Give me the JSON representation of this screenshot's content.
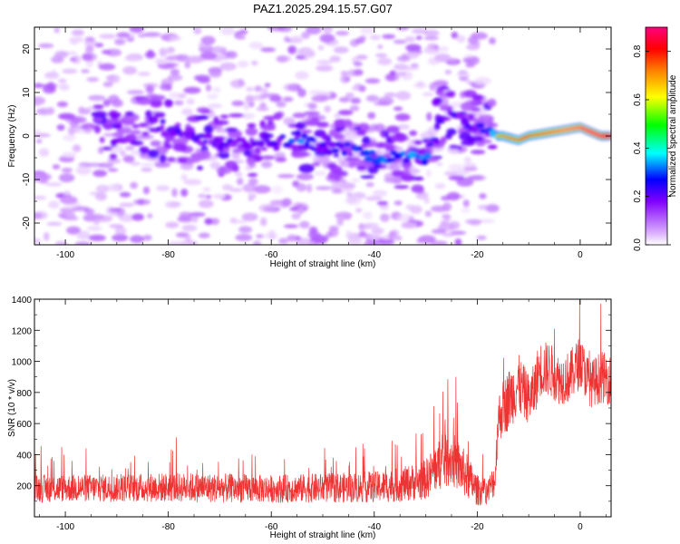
{
  "title": "PAZ1.2025.294.15.57.G07",
  "chart_data": [
    {
      "type": "heatmap",
      "xlabel": "Height of straight line (km)",
      "ylabel": "Frequency (Hz)",
      "xlim": [
        -106,
        6
      ],
      "ylim": [
        -25,
        25
      ],
      "x_ticks": [
        -100,
        -80,
        -60,
        -40,
        -20,
        0
      ],
      "y_ticks": [
        -20,
        -10,
        0,
        10,
        20
      ],
      "colorbar": {
        "label": "Normalized spectral amplitude",
        "range": [
          0,
          0.9
        ],
        "ticks": [
          "0.0",
          "0.2",
          "0.4",
          "0.6",
          "0.8"
        ],
        "colors": [
          "#ffffff",
          "#d8a8ff",
          "#8000ff",
          "#0000ff",
          "#00ffff",
          "#00ff00",
          "#ffff00",
          "#ff8000",
          "#ff0000",
          "#ff0080"
        ]
      },
      "ridge": {
        "description_points_x": [
          -82,
          -75,
          -70,
          -60,
          -55,
          -50,
          -45,
          -40,
          -35,
          -30,
          -27,
          -25,
          -20,
          -16,
          -15,
          -12,
          -10,
          -5,
          0,
          4,
          6
        ],
        "description_points_y": [
          2,
          0,
          -2,
          -2,
          0,
          -3,
          -3,
          -5,
          -5,
          -6,
          5,
          4,
          3,
          0,
          0,
          -1,
          0,
          1,
          2,
          0,
          0
        ],
        "peak_amplitude": [
          0.2,
          0.22,
          0.2,
          0.2,
          0.32,
          0.22,
          0.24,
          0.35,
          0.3,
          0.34,
          0.2,
          0.22,
          0.2,
          0.38,
          0.4,
          0.42,
          0.45,
          0.5,
          0.55,
          0.6,
          0.85
        ]
      }
    },
    {
      "type": "line",
      "xlabel": "Height of straight line (km)",
      "ylabel": "SNR (10 * v/v)",
      "xlim": [
        -106,
        6
      ],
      "ylim": [
        0,
        1400
      ],
      "x_ticks": [
        -100,
        -80,
        -60,
        -40,
        -20,
        0
      ],
      "y_ticks": [
        200,
        400,
        600,
        800,
        1000,
        1200,
        1400
      ],
      "series": [
        {
          "name": "SNR",
          "color": "#ee3333",
          "x": [
            -106,
            -100,
            -90,
            -80,
            -70,
            -60,
            -50,
            -40,
            -35,
            -30,
            -28,
            -25,
            -22,
            -20,
            -18,
            -16.5,
            -16,
            -15,
            -14,
            -12,
            -10,
            -9,
            -8,
            -6,
            -4,
            -2,
            0,
            2,
            4,
            6
          ],
          "mean": [
            180,
            185,
            185,
            190,
            185,
            180,
            185,
            190,
            205,
            240,
            320,
            380,
            260,
            170,
            160,
            250,
            620,
            700,
            750,
            850,
            760,
            800,
            950,
            950,
            880,
            900,
            1000,
            850,
            900,
            880
          ],
          "amplitude": [
            90,
            90,
            90,
            95,
            95,
            90,
            95,
            100,
            110,
            130,
            160,
            180,
            150,
            100,
            80,
            120,
            160,
            180,
            200,
            200,
            160,
            180,
            180,
            180,
            160,
            170,
            170,
            150,
            170,
            160
          ]
        }
      ]
    }
  ]
}
